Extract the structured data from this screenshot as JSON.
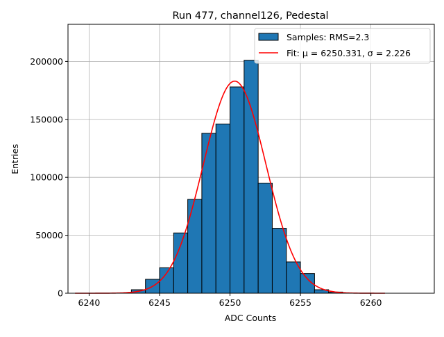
{
  "chart_data": {
    "type": "bar",
    "title": "Run 477, channel126, Pedestal",
    "xlabel": "ADC Counts",
    "ylabel": "Entries",
    "xlim": [
      6238.5,
      6264.5
    ],
    "ylim": [
      0,
      232000
    ],
    "xticks": [
      6240,
      6245,
      6250,
      6255,
      6260
    ],
    "yticks": [
      0,
      50000,
      100000,
      150000,
      200000
    ],
    "grid": true,
    "legend_position": "top-right",
    "histogram": {
      "name": "Samples: RMS=2.3",
      "color": "#1f77b4",
      "edge_color": "#000000",
      "bins": [
        {
          "x0": 6243,
          "x1": 6244,
          "count": 3000
        },
        {
          "x0": 6244,
          "x1": 6245,
          "count": 12000
        },
        {
          "x0": 6245,
          "x1": 6246,
          "count": 22000
        },
        {
          "x0": 6246,
          "x1": 6247,
          "count": 52000
        },
        {
          "x0": 6247,
          "x1": 6248,
          "count": 81000
        },
        {
          "x0": 6248,
          "x1": 6249,
          "count": 138000
        },
        {
          "x0": 6249,
          "x1": 6250,
          "count": 146000
        },
        {
          "x0": 6250,
          "x1": 6251,
          "count": 178000
        },
        {
          "x0": 6251,
          "x1": 6252,
          "count": 201000
        },
        {
          "x0": 6252,
          "x1": 6253,
          "count": 95000
        },
        {
          "x0": 6253,
          "x1": 6254,
          "count": 56000
        },
        {
          "x0": 6254,
          "x1": 6255,
          "count": 27000
        },
        {
          "x0": 6255,
          "x1": 6256,
          "count": 17000
        },
        {
          "x0": 6256,
          "x1": 6257,
          "count": 3000
        },
        {
          "x0": 6257,
          "x1": 6258,
          "count": 1000
        }
      ]
    },
    "fit": {
      "name": "Fit: μ = 6250.331, σ = 2.226",
      "mu": 6250.331,
      "sigma": 2.226,
      "amplitude": 183000,
      "x_range": [
        6239,
        6261
      ],
      "color": "#ff0000"
    }
  }
}
